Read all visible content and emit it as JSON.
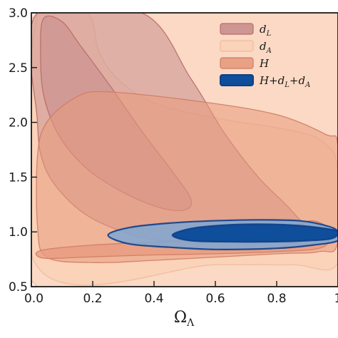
{
  "chart_data": {
    "type": "contour",
    "title": "",
    "xlabel": "Ω",
    "xlabel_sub": "Λ",
    "ylabel": "",
    "xlim": [
      0.0,
      1.0
    ],
    "ylim": [
      0.5,
      3.0
    ],
    "x_ticks": [
      0.0,
      0.2,
      0.4,
      0.6,
      0.8,
      1.0
    ],
    "x_tick_labels": [
      "0.0",
      "0.2",
      "0.4",
      "0.6",
      "0.8",
      "1"
    ],
    "y_ticks": [
      0.5,
      1.0,
      1.5,
      2.0,
      2.5,
      3.0
    ],
    "y_tick_labels": [
      "0.5",
      "1.0",
      "1.5",
      "2.0",
      "2.5",
      "3.0"
    ],
    "grid": false,
    "legend_position": "top-right",
    "series": [
      {
        "name": "d_L",
        "legend_label": "d",
        "legend_sub": "L",
        "fill": "#c98e8e",
        "stroke": "#b86a6a",
        "contours": [
          {
            "level": "outer",
            "points": [
              [
                0.02,
                3.0
              ],
              [
                0.36,
                3.0
              ],
              [
                0.52,
                2.4
              ],
              [
                0.63,
                1.9
              ],
              [
                0.74,
                1.5
              ],
              [
                0.84,
                1.22
              ],
              [
                0.9,
                1.0
              ],
              [
                0.86,
                0.9
              ],
              [
                0.72,
                0.88
              ],
              [
                0.52,
                0.9
              ],
              [
                0.36,
                0.95
              ],
              [
                0.2,
                1.12
              ],
              [
                0.1,
                1.35
              ],
              [
                0.04,
                1.62
              ],
              [
                0.02,
                2.0
              ]
            ]
          },
          {
            "level": "inner",
            "points": [
              [
                0.04,
                2.95
              ],
              [
                0.1,
                2.92
              ],
              [
                0.16,
                2.7
              ],
              [
                0.26,
                2.32
              ],
              [
                0.36,
                1.92
              ],
              [
                0.46,
                1.55
              ],
              [
                0.52,
                1.3
              ],
              [
                0.5,
                1.2
              ],
              [
                0.42,
                1.22
              ],
              [
                0.3,
                1.36
              ],
              [
                0.18,
                1.58
              ],
              [
                0.09,
                1.88
              ],
              [
                0.04,
                2.25
              ],
              [
                0.03,
                2.65
              ]
            ]
          }
        ]
      },
      {
        "name": "d_A",
        "legend_label": "d",
        "legend_sub": "A",
        "fill": "#f9d2b8",
        "stroke": "#ecbc9e",
        "contours": [
          {
            "level": "outer",
            "points": [
              [
                0.02,
                3.0
              ],
              [
                1.0,
                3.0
              ],
              [
                1.0,
                0.5
              ],
              [
                0.02,
                0.5
              ]
            ]
          },
          {
            "level": "inner",
            "points": [
              [
                0.02,
                0.68
              ],
              [
                0.6,
                0.7
              ],
              [
                0.85,
                0.7
              ],
              [
                1.0,
                0.72
              ],
              [
                1.0,
                1.55
              ],
              [
                0.96,
                1.8
              ],
              [
                0.86,
                1.92
              ],
              [
                0.6,
                2.04
              ],
              [
                0.4,
                2.18
              ],
              [
                0.28,
                2.4
              ],
              [
                0.22,
                2.65
              ],
              [
                0.18,
                3.0
              ],
              [
                0.02,
                3.0
              ]
            ]
          }
        ]
      },
      {
        "name": "H",
        "legend_label": "H",
        "legend_sub": "",
        "fill": "#e79a7e",
        "stroke": "#cf7c64",
        "contours": [
          {
            "level": "outer",
            "points": [
              [
                0.05,
                2.0
              ],
              [
                0.14,
                2.22
              ],
              [
                0.24,
                2.28
              ],
              [
                0.55,
                2.19
              ],
              [
                0.8,
                2.07
              ],
              [
                0.96,
                1.89
              ],
              [
                1.0,
                1.78
              ],
              [
                1.0,
                0.92
              ],
              [
                0.94,
                0.82
              ],
              [
                0.8,
                0.8
              ],
              [
                0.4,
                0.74
              ],
              [
                0.2,
                0.72
              ],
              [
                0.05,
                0.77
              ],
              [
                0.02,
                1.05
              ],
              [
                0.02,
                1.7
              ]
            ]
          },
          {
            "level": "inner",
            "points": [
              [
                0.03,
                0.83
              ],
              [
                0.2,
                0.88
              ],
              [
                0.5,
                0.92
              ],
              [
                0.74,
                0.96
              ],
              [
                0.86,
                1.06
              ],
              [
                0.92,
                1.1
              ],
              [
                0.97,
                1.02
              ],
              [
                0.95,
                0.86
              ],
              [
                0.8,
                0.82
              ],
              [
                0.6,
                0.8
              ],
              [
                0.4,
                0.79
              ],
              [
                0.18,
                0.77
              ],
              [
                0.04,
                0.76
              ]
            ]
          }
        ]
      },
      {
        "name": "H+d_L+d_A",
        "legend_label": "H+d",
        "legend_sub": "L",
        "legend_label2": "+d",
        "legend_sub2": "A",
        "fill": "#7fa7d2",
        "stroke": "#0f3f88",
        "inner_fill": "#0f4e9a",
        "contours": [
          {
            "level": "outer",
            "points": [
              [
                0.25,
                0.97
              ],
              [
                0.32,
                1.04
              ],
              [
                0.45,
                1.08
              ],
              [
                0.58,
                1.1
              ],
              [
                0.74,
                1.11
              ],
              [
                0.88,
                1.1
              ],
              [
                0.97,
                1.05
              ],
              [
                1.0,
                1.0
              ],
              [
                1.0,
                0.92
              ],
              [
                0.92,
                0.88
              ],
              [
                0.8,
                0.85
              ],
              [
                0.6,
                0.84
              ],
              [
                0.45,
                0.86
              ],
              [
                0.32,
                0.89
              ]
            ]
          },
          {
            "level": "inner",
            "points": [
              [
                0.46,
                0.97
              ],
              [
                0.52,
                1.03
              ],
              [
                0.62,
                1.06
              ],
              [
                0.74,
                1.07
              ],
              [
                0.86,
                1.06
              ],
              [
                0.96,
                1.03
              ],
              [
                1.0,
                1.0
              ],
              [
                0.98,
                0.94
              ],
              [
                0.9,
                0.92
              ],
              [
                0.78,
                0.91
              ],
              [
                0.64,
                0.91
              ],
              [
                0.52,
                0.92
              ]
            ]
          }
        ]
      }
    ]
  }
}
